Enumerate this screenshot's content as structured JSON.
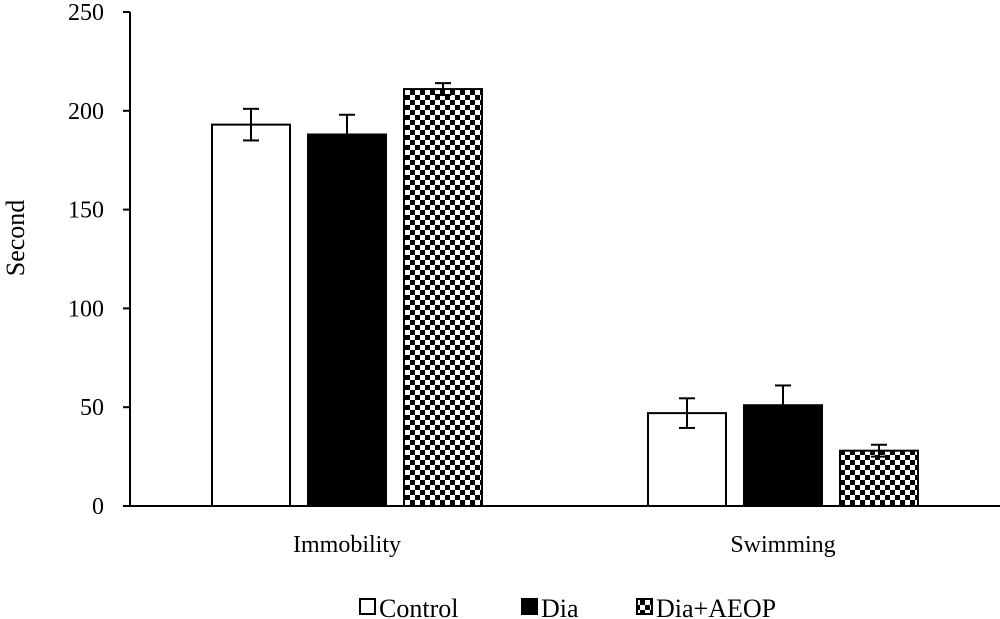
{
  "chart_data": {
    "type": "bar",
    "title": "",
    "xlabel": "",
    "ylabel": "Second",
    "ylim": [
      0,
      250
    ],
    "yticks": [
      0,
      50,
      100,
      150,
      200,
      250
    ],
    "grid": false,
    "legend_position": "bottom",
    "categories": [
      "Immobility",
      "Swimming"
    ],
    "series": [
      {
        "name": "Control",
        "values": [
          193,
          47
        ],
        "errors": [
          8,
          7.5
        ],
        "fill": "white"
      },
      {
        "name": "Dia",
        "values": [
          188,
          51
        ],
        "errors": [
          10,
          10
        ],
        "fill": "black"
      },
      {
        "name": "Dia+AEOP",
        "values": [
          211,
          28
        ],
        "errors": [
          3,
          3
        ],
        "fill": "checkerboard"
      }
    ]
  },
  "colors": {
    "axis": "#000000",
    "bar_outline": "#000000",
    "dark_fill": "#000000",
    "light_fill": "#ffffff"
  }
}
